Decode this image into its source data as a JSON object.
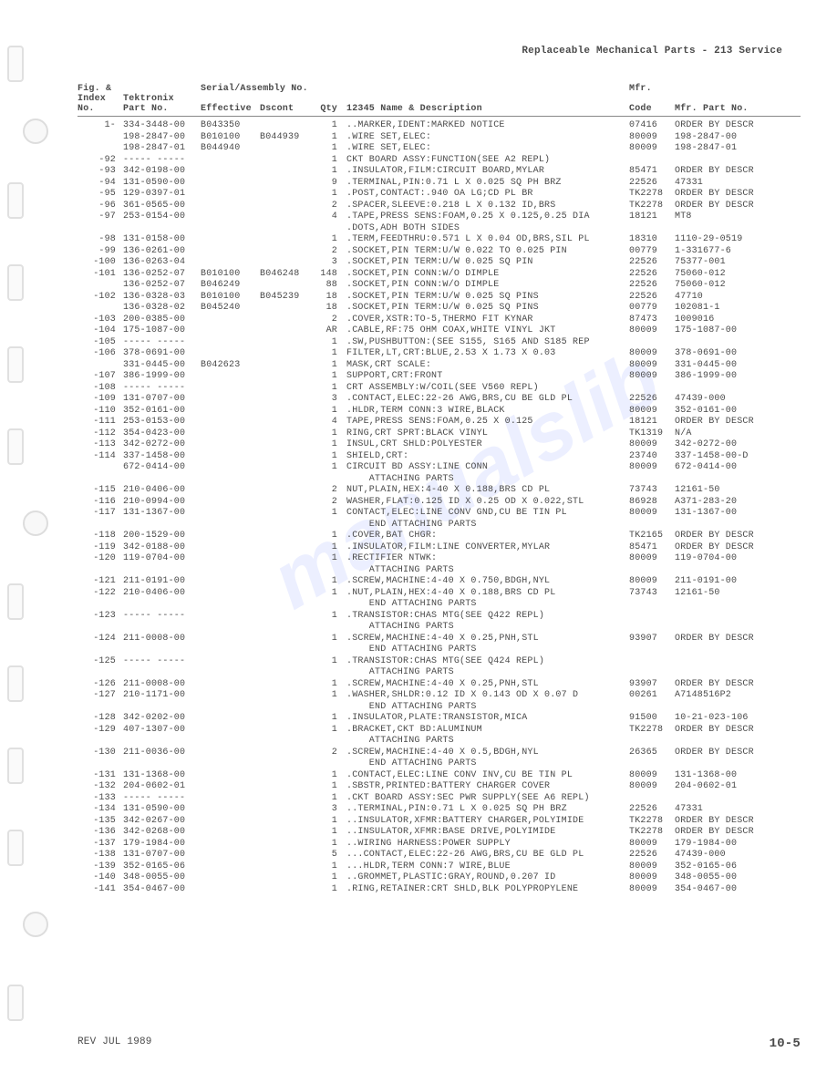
{
  "header_right": "Replaceable Mechanical Parts - 213 Service",
  "footer_left": "REV JUL 1989",
  "footer_right": "10-5",
  "watermark": "manualslib",
  "headers": {
    "fig_line1": "Fig. &",
    "fig_line2": "Index",
    "fig_line3": "No.",
    "part_line1": "Tektronix",
    "part_line2": "Part No.",
    "serial_top": "Serial/Assembly No.",
    "eff": "Effective",
    "dsc": "Dscont",
    "qty": "Qty",
    "desc": "12345   Name & Description",
    "mfr_line1": "Mfr.",
    "mfr_line2": "Code",
    "mfrpart": "Mfr. Part No."
  },
  "rows": [
    {
      "fig": "1-",
      "part": "334-3448-00",
      "eff": "B043350",
      "dsc": "",
      "qty": "1",
      "desc": "..MARKER,IDENT:MARKED NOTICE",
      "code": "07416",
      "mfrpart": "ORDER BY DESCR"
    },
    {
      "fig": "",
      "part": "198-2847-00",
      "eff": "B010100",
      "dsc": "B044939",
      "qty": "1",
      "desc": ".WIRE SET,ELEC:",
      "code": "80009",
      "mfrpart": "198-2847-00"
    },
    {
      "fig": "",
      "part": "198-2847-01",
      "eff": "B044940",
      "dsc": "",
      "qty": "1",
      "desc": ".WIRE SET,ELEC:",
      "code": "80009",
      "mfrpart": "198-2847-01"
    },
    {
      "fig": "-92",
      "part": "----- -----",
      "eff": "",
      "dsc": "",
      "qty": "1",
      "desc": "CKT BOARD ASSY:FUNCTION(SEE A2 REPL)",
      "code": "",
      "mfrpart": ""
    },
    {
      "fig": "-93",
      "part": "342-0198-00",
      "eff": "",
      "dsc": "",
      "qty": "1",
      "desc": ".INSULATOR,FILM:CIRCUIT BOARD,MYLAR",
      "code": "85471",
      "mfrpart": "ORDER BY DESCR"
    },
    {
      "fig": "-94",
      "part": "131-0590-00",
      "eff": "",
      "dsc": "",
      "qty": "9",
      "desc": ".TERMINAL,PIN:0.71 L X 0.025 SQ PH BRZ",
      "code": "22526",
      "mfrpart": "47331"
    },
    {
      "fig": "-95",
      "part": "129-0397-01",
      "eff": "",
      "dsc": "",
      "qty": "1",
      "desc": ".POST,CONTACT:.940 OA LG;CD PL BR",
      "code": "TK2278",
      "mfrpart": "ORDER BY DESCR"
    },
    {
      "fig": "-96",
      "part": "361-0565-00",
      "eff": "",
      "dsc": "",
      "qty": "2",
      "desc": ".SPACER,SLEEVE:0.218 L X 0.132 ID,BRS",
      "code": "TK2278",
      "mfrpart": "ORDER BY DESCR"
    },
    {
      "fig": "-97",
      "part": "253-0154-00",
      "eff": "",
      "dsc": "",
      "qty": "4",
      "desc": ".TAPE,PRESS SENS:FOAM,0.25 X 0.125,0.25 DIA",
      "code": "18121",
      "mfrpart": "MT8"
    },
    {
      "fig": "",
      "part": "",
      "eff": "",
      "dsc": "",
      "qty": "",
      "desc": ".DOTS,ADH BOTH SIDES",
      "code": "",
      "mfrpart": ""
    },
    {
      "fig": "-98",
      "part": "131-0158-00",
      "eff": "",
      "dsc": "",
      "qty": "1",
      "desc": ".TERM,FEEDTHRU:0.571 L X 0.04 OD,BRS,SIL PL",
      "code": "18310",
      "mfrpart": "1110-29-0519"
    },
    {
      "fig": "-99",
      "part": "136-0261-00",
      "eff": "",
      "dsc": "",
      "qty": "2",
      "desc": ".SOCKET,PIN TERM:U/W 0.022 TO 0.025 PIN",
      "code": "00779",
      "mfrpart": "1-331677-6"
    },
    {
      "fig": "-100",
      "part": "136-0263-04",
      "eff": "",
      "dsc": "",
      "qty": "3",
      "desc": ".SOCKET,PIN TERM:U/W 0.025 SQ PIN",
      "code": "22526",
      "mfrpart": "75377-001"
    },
    {
      "fig": "-101",
      "part": "136-0252-07",
      "eff": "B010100",
      "dsc": "B046248",
      "qty": "148",
      "desc": ".SOCKET,PIN CONN:W/O DIMPLE",
      "code": "22526",
      "mfrpart": "75060-012"
    },
    {
      "fig": "",
      "part": "136-0252-07",
      "eff": "B046249",
      "dsc": "",
      "qty": "88",
      "desc": ".SOCKET,PIN CONN:W/O DIMPLE",
      "code": "22526",
      "mfrpart": "75060-012"
    },
    {
      "fig": "-102",
      "part": "136-0328-03",
      "eff": "B010100",
      "dsc": "B045239",
      "qty": "18",
      "desc": ".SOCKET,PIN TERM:U/W 0.025 SQ PINS",
      "code": "22526",
      "mfrpart": "47710"
    },
    {
      "fig": "",
      "part": "136-0328-02",
      "eff": "B045240",
      "dsc": "",
      "qty": "18",
      "desc": ".SOCKET,PIN TERM:U/W 0.025 SQ PINS",
      "code": "00779",
      "mfrpart": "102081-1"
    },
    {
      "fig": "-103",
      "part": "200-0385-00",
      "eff": "",
      "dsc": "",
      "qty": "2",
      "desc": ".COVER,XSTR:TO-5,THERMO FIT KYNAR",
      "code": "87473",
      "mfrpart": "1009016"
    },
    {
      "fig": "-104",
      "part": "175-1087-00",
      "eff": "",
      "dsc": "",
      "qty": "AR",
      "desc": ".CABLE,RF:75 OHM COAX,WHITE VINYL JKT",
      "code": "80009",
      "mfrpart": "175-1087-00"
    },
    {
      "fig": "-105",
      "part": "----- -----",
      "eff": "",
      "dsc": "",
      "qty": "1",
      "desc": ".SW,PUSHBUTTON:(SEE S155, S165 AND S185 REP",
      "code": "",
      "mfrpart": ""
    },
    {
      "fig": "-106",
      "part": "378-0691-00",
      "eff": "",
      "dsc": "",
      "qty": "1",
      "desc": "FILTER,LT,CRT:BLUE,2.53 X 1.73 X 0.03",
      "code": "80009",
      "mfrpart": "378-0691-00"
    },
    {
      "fig": "",
      "part": "331-0445-00",
      "eff": "B042623",
      "dsc": "",
      "qty": "1",
      "desc": "MASK,CRT SCALE:",
      "code": "80009",
      "mfrpart": "331-0445-00"
    },
    {
      "fig": "-107",
      "part": "386-1999-00",
      "eff": "",
      "dsc": "",
      "qty": "1",
      "desc": "SUPPORT,CRT:FRONT",
      "code": "80009",
      "mfrpart": "386-1999-00"
    },
    {
      "fig": "-108",
      "part": "----- -----",
      "eff": "",
      "dsc": "",
      "qty": "1",
      "desc": "CRT ASSEMBLY:W/COIL(SEE V560 REPL)",
      "code": "",
      "mfrpart": ""
    },
    {
      "fig": "-109",
      "part": "131-0707-00",
      "eff": "",
      "dsc": "",
      "qty": "3",
      "desc": ".CONTACT,ELEC:22-26 AWG,BRS,CU BE GLD PL",
      "code": "22526",
      "mfrpart": "47439-000"
    },
    {
      "fig": "-110",
      "part": "352-0161-00",
      "eff": "",
      "dsc": "",
      "qty": "1",
      "desc": ".HLDR,TERM CONN:3 WIRE,BLACK",
      "code": "80009",
      "mfrpart": "352-0161-00"
    },
    {
      "fig": "-111",
      "part": "253-0153-00",
      "eff": "",
      "dsc": "",
      "qty": "4",
      "desc": "TAPE,PRESS SENS:FOAM,0.25 X 0.125",
      "code": "18121",
      "mfrpart": "ORDER BY DESCR"
    },
    {
      "fig": "-112",
      "part": "354-0423-00",
      "eff": "",
      "dsc": "",
      "qty": "1",
      "desc": "RING,CRT SPRT:BLACK VINYL",
      "code": "TK1319",
      "mfrpart": "N/A"
    },
    {
      "fig": "-113",
      "part": "342-0272-00",
      "eff": "",
      "dsc": "",
      "qty": "1",
      "desc": "INSUL,CRT SHLD:POLYESTER",
      "code": "80009",
      "mfrpart": "342-0272-00"
    },
    {
      "fig": "-114",
      "part": "337-1458-00",
      "eff": "",
      "dsc": "",
      "qty": "1",
      "desc": "SHIELD,CRT:",
      "code": "23740",
      "mfrpart": "337-1458-00-D"
    },
    {
      "fig": "",
      "part": "672-0414-00",
      "eff": "",
      "dsc": "",
      "qty": "1",
      "desc": "CIRCUIT BD ASSY:LINE CONN",
      "code": "80009",
      "mfrpart": "672-0414-00"
    },
    {
      "fig": "",
      "part": "",
      "eff": "",
      "dsc": "",
      "qty": "",
      "desc": "    ATTACHING PARTS",
      "code": "",
      "mfrpart": ""
    },
    {
      "fig": "-115",
      "part": "210-0406-00",
      "eff": "",
      "dsc": "",
      "qty": "2",
      "desc": "NUT,PLAIN,HEX:4-40 X 0.188,BRS CD PL",
      "code": "73743",
      "mfrpart": "12161-50"
    },
    {
      "fig": "-116",
      "part": "210-0994-00",
      "eff": "",
      "dsc": "",
      "qty": "2",
      "desc": "WASHER,FLAT:0.125 ID X 0.25 OD X 0.022,STL",
      "code": "86928",
      "mfrpart": "A371-283-20"
    },
    {
      "fig": "-117",
      "part": "131-1367-00",
      "eff": "",
      "dsc": "",
      "qty": "1",
      "desc": "CONTACT,ELEC:LINE CONV GND,CU BE TIN PL",
      "code": "80009",
      "mfrpart": "131-1367-00"
    },
    {
      "fig": "",
      "part": "",
      "eff": "",
      "dsc": "",
      "qty": "",
      "desc": "    END ATTACHING PARTS",
      "code": "",
      "mfrpart": ""
    },
    {
      "fig": "-118",
      "part": "200-1529-00",
      "eff": "",
      "dsc": "",
      "qty": "1",
      "desc": ".COVER,BAT CHGR:",
      "code": "TK2165",
      "mfrpart": "ORDER BY DESCR"
    },
    {
      "fig": "-119",
      "part": "342-0188-00",
      "eff": "",
      "dsc": "",
      "qty": "1",
      "desc": ".INSULATOR,FILM:LINE CONVERTER,MYLAR",
      "code": "85471",
      "mfrpart": "ORDER BY DESCR"
    },
    {
      "fig": "-120",
      "part": "119-0704-00",
      "eff": "",
      "dsc": "",
      "qty": "1",
      "desc": ".RECTIFIER NTWK:",
      "code": "80009",
      "mfrpart": "119-0704-00"
    },
    {
      "fig": "",
      "part": "",
      "eff": "",
      "dsc": "",
      "qty": "",
      "desc": "    ATTACHING PARTS",
      "code": "",
      "mfrpart": ""
    },
    {
      "fig": "-121",
      "part": "211-0191-00",
      "eff": "",
      "dsc": "",
      "qty": "1",
      "desc": ".SCREW,MACHINE:4-40 X 0.750,BDGH,NYL",
      "code": "80009",
      "mfrpart": "211-0191-00"
    },
    {
      "fig": "-122",
      "part": "210-0406-00",
      "eff": "",
      "dsc": "",
      "qty": "1",
      "desc": ".NUT,PLAIN,HEX:4-40 X 0.188,BRS CD PL",
      "code": "73743",
      "mfrpart": "12161-50"
    },
    {
      "fig": "",
      "part": "",
      "eff": "",
      "dsc": "",
      "qty": "",
      "desc": "    END ATTACHING PARTS",
      "code": "",
      "mfrpart": ""
    },
    {
      "fig": "-123",
      "part": "----- -----",
      "eff": "",
      "dsc": "",
      "qty": "1",
      "desc": ".TRANSISTOR:CHAS MTG(SEE Q422 REPL)",
      "code": "",
      "mfrpart": ""
    },
    {
      "fig": "",
      "part": "",
      "eff": "",
      "dsc": "",
      "qty": "",
      "desc": "    ATTACHING PARTS",
      "code": "",
      "mfrpart": ""
    },
    {
      "fig": "-124",
      "part": "211-0008-00",
      "eff": "",
      "dsc": "",
      "qty": "1",
      "desc": ".SCREW,MACHINE:4-40 X 0.25,PNH,STL",
      "code": "93907",
      "mfrpart": "ORDER BY DESCR"
    },
    {
      "fig": "",
      "part": "",
      "eff": "",
      "dsc": "",
      "qty": "",
      "desc": "    END ATTACHING PARTS",
      "code": "",
      "mfrpart": ""
    },
    {
      "fig": "-125",
      "part": "----- -----",
      "eff": "",
      "dsc": "",
      "qty": "1",
      "desc": ".TRANSISTOR:CHAS MTG(SEE Q424 REPL)",
      "code": "",
      "mfrpart": ""
    },
    {
      "fig": "",
      "part": "",
      "eff": "",
      "dsc": "",
      "qty": "",
      "desc": "    ATTACHING PARTS",
      "code": "",
      "mfrpart": ""
    },
    {
      "fig": "-126",
      "part": "211-0008-00",
      "eff": "",
      "dsc": "",
      "qty": "1",
      "desc": ".SCREW,MACHINE:4-40 X 0.25,PNH,STL",
      "code": "93907",
      "mfrpart": "ORDER BY DESCR"
    },
    {
      "fig": "-127",
      "part": "210-1171-00",
      "eff": "",
      "dsc": "",
      "qty": "1",
      "desc": ".WASHER,SHLDR:0.12 ID X 0.143 OD X 0.07 D",
      "code": "00261",
      "mfrpart": "A7148516P2"
    },
    {
      "fig": "",
      "part": "",
      "eff": "",
      "dsc": "",
      "qty": "",
      "desc": "    END ATTACHING PARTS",
      "code": "",
      "mfrpart": ""
    },
    {
      "fig": "-128",
      "part": "342-0202-00",
      "eff": "",
      "dsc": "",
      "qty": "1",
      "desc": ".INSULATOR,PLATE:TRANSISTOR,MICA",
      "code": "91500",
      "mfrpart": "10-21-023-106"
    },
    {
      "fig": "-129",
      "part": "407-1307-00",
      "eff": "",
      "dsc": "",
      "qty": "1",
      "desc": ".BRACKET,CKT BD:ALUMINUM",
      "code": "TK2278",
      "mfrpart": "ORDER BY DESCR"
    },
    {
      "fig": "",
      "part": "",
      "eff": "",
      "dsc": "",
      "qty": "",
      "desc": "    ATTACHING PARTS",
      "code": "",
      "mfrpart": ""
    },
    {
      "fig": "-130",
      "part": "211-0036-00",
      "eff": "",
      "dsc": "",
      "qty": "2",
      "desc": ".SCREW,MACHINE:4-40 X 0.5,BDGH,NYL",
      "code": "26365",
      "mfrpart": "ORDER BY DESCR"
    },
    {
      "fig": "",
      "part": "",
      "eff": "",
      "dsc": "",
      "qty": "",
      "desc": "    END ATTACHING PARTS",
      "code": "",
      "mfrpart": ""
    },
    {
      "fig": "-131",
      "part": "131-1368-00",
      "eff": "",
      "dsc": "",
      "qty": "1",
      "desc": ".CONTACT,ELEC:LINE CONV INV,CU BE TIN PL",
      "code": "80009",
      "mfrpart": "131-1368-00"
    },
    {
      "fig": "-132",
      "part": "204-0602-01",
      "eff": "",
      "dsc": "",
      "qty": "1",
      "desc": ".SBSTR,PRINTED:BATTERY CHARGER COVER",
      "code": "80009",
      "mfrpart": "204-0602-01"
    },
    {
      "fig": "-133",
      "part": "----- -----",
      "eff": "",
      "dsc": "",
      "qty": "1",
      "desc": ".CKT BOARD ASSY:SEC PWR SUPPLY(SEE A6 REPL)",
      "code": "",
      "mfrpart": ""
    },
    {
      "fig": "-134",
      "part": "131-0590-00",
      "eff": "",
      "dsc": "",
      "qty": "3",
      "desc": "..TERMINAL,PIN:0.71 L X 0.025 SQ PH BRZ",
      "code": "22526",
      "mfrpart": "47331"
    },
    {
      "fig": "-135",
      "part": "342-0267-00",
      "eff": "",
      "dsc": "",
      "qty": "1",
      "desc": "..INSULATOR,XFMR:BATTERY CHARGER,POLYIMIDE",
      "code": "TK2278",
      "mfrpart": "ORDER BY DESCR"
    },
    {
      "fig": "-136",
      "part": "342-0268-00",
      "eff": "",
      "dsc": "",
      "qty": "1",
      "desc": "..INSULATOR,XFMR:BASE DRIVE,POLYIMIDE",
      "code": "TK2278",
      "mfrpart": "ORDER BY DESCR"
    },
    {
      "fig": "-137",
      "part": "179-1984-00",
      "eff": "",
      "dsc": "",
      "qty": "1",
      "desc": "..WIRING HARNESS:POWER SUPPLY",
      "code": "80009",
      "mfrpart": "179-1984-00"
    },
    {
      "fig": "-138",
      "part": "131-0707-00",
      "eff": "",
      "dsc": "",
      "qty": "5",
      "desc": "...CONTACT,ELEC:22-26 AWG,BRS,CU BE GLD PL",
      "code": "22526",
      "mfrpart": "47439-000"
    },
    {
      "fig": "-139",
      "part": "352-0165-06",
      "eff": "",
      "dsc": "",
      "qty": "1",
      "desc": "...HLDR,TERM CONN:7 WIRE,BLUE",
      "code": "80009",
      "mfrpart": "352-0165-06"
    },
    {
      "fig": "-140",
      "part": "348-0055-00",
      "eff": "",
      "dsc": "",
      "qty": "1",
      "desc": "..GROMMET,PLASTIC:GRAY,ROUND,0.207 ID",
      "code": "80009",
      "mfrpart": "348-0055-00"
    },
    {
      "fig": "-141",
      "part": "354-0467-00",
      "eff": "",
      "dsc": "",
      "qty": "1",
      "desc": ".RING,RETAINER:CRT SHLD,BLK POLYPROPYLENE",
      "code": "80009",
      "mfrpart": "354-0467-00"
    }
  ]
}
